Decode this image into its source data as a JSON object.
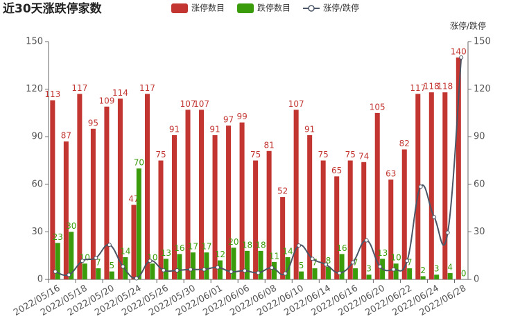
{
  "chart_data": {
    "type": "bar",
    "title": "近30天涨跌停家数",
    "y2_axis_label": "涨停/跌停",
    "categories": [
      "2022/05/16",
      null,
      "2022/05/18",
      null,
      "2022/05/20",
      null,
      "2022/05/24",
      null,
      "2022/05/26",
      null,
      "2022/05/30",
      null,
      "2022/06/01",
      null,
      "2022/06/06",
      null,
      "2022/06/08",
      null,
      "2022/06/10",
      null,
      "2022/06/14",
      null,
      "2022/06/16",
      null,
      "2022/06/20",
      null,
      "2022/06/22",
      null,
      "2022/06/24",
      null,
      "2022/06/28"
    ],
    "series": [
      {
        "name": "涨停数目",
        "color": "#c23531",
        "values": [
          113,
          87,
          117,
          95,
          109,
          114,
          47,
          117,
          75,
          91,
          107,
          107,
          91,
          97,
          99,
          75,
          81,
          52,
          107,
          91,
          75,
          65,
          75,
          74,
          105,
          63,
          82,
          117,
          118,
          118,
          140
        ]
      },
      {
        "name": "跌停数目",
        "color": "#3a9c0a",
        "values": [
          23,
          30,
          10,
          7,
          5,
          14,
          70,
          10,
          13,
          16,
          17,
          17,
          12,
          20,
          18,
          18,
          11,
          14,
          5,
          7,
          8,
          16,
          7,
          3,
          13,
          10,
          7,
          2,
          3,
          4,
          0
        ]
      },
      {
        "name": "涨停/跌停",
        "color": "#4a5565",
        "type": "line",
        "axis": "y2",
        "values": [
          4.91,
          2.9,
          11.7,
          13.57,
          21.8,
          8.14,
          0.67,
          11.7,
          5.77,
          5.69,
          6.29,
          6.29,
          7.58,
          4.85,
          5.5,
          4.17,
          7.36,
          3.71,
          21.4,
          13,
          9.38,
          4.06,
          10.71,
          24.67,
          8.08,
          6.3,
          11.71,
          58.5,
          39.33,
          29.5,
          140
        ]
      }
    ],
    "ylim": [
      0,
      150
    ],
    "yticks": [
      0,
      30,
      60,
      90,
      120,
      150
    ],
    "y2lim": [
      0,
      150
    ],
    "y2ticks": [
      0,
      30,
      60,
      90,
      120,
      150
    ],
    "legend": "top"
  }
}
